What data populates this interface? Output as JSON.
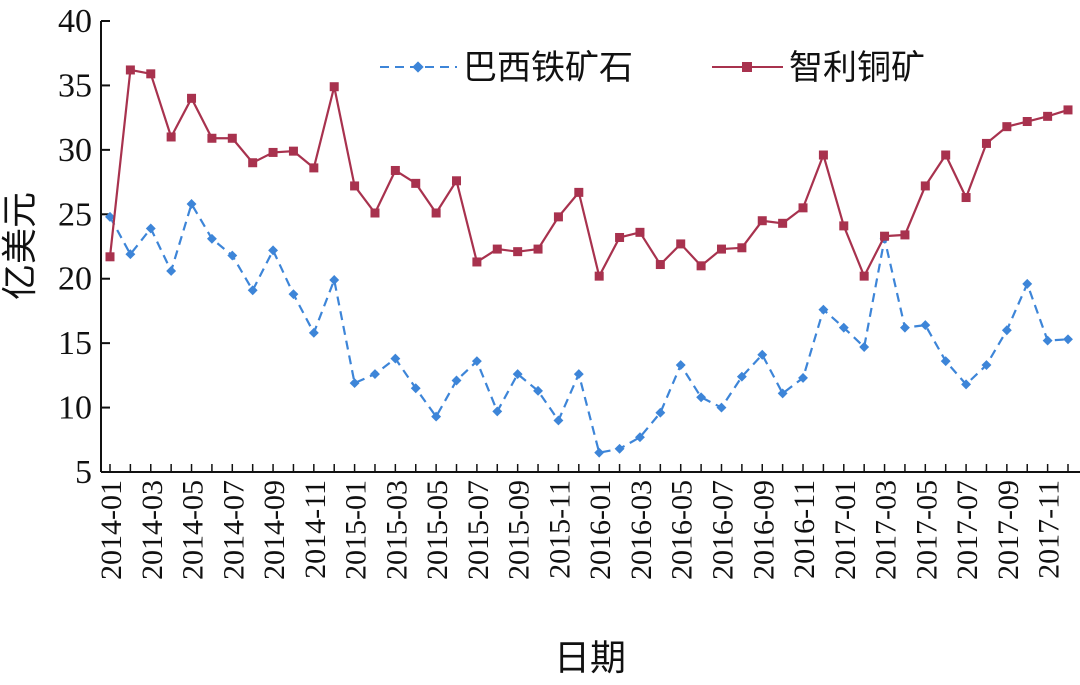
{
  "chart_data": {
    "type": "line",
    "title": "",
    "xlabel": "日期",
    "ylabel": "亿美元",
    "ylim": [
      5,
      40
    ],
    "yticks": [
      5,
      10,
      15,
      20,
      25,
      30,
      35,
      40
    ],
    "grid": false,
    "legend_position": "top",
    "x": [
      "2014-01",
      "2014-02",
      "2014-03",
      "2014-04",
      "2014-05",
      "2014-06",
      "2014-07",
      "2014-08",
      "2014-09",
      "2014-10",
      "2014-11",
      "2014-12",
      "2015-01",
      "2015-02",
      "2015-03",
      "2015-04",
      "2015-05",
      "2015-06",
      "2015-07",
      "2015-08",
      "2015-09",
      "2015-10",
      "2015-11",
      "2015-12",
      "2016-01",
      "2016-02",
      "2016-03",
      "2016-04",
      "2016-05",
      "2016-06",
      "2016-07",
      "2016-08",
      "2016-09",
      "2016-10",
      "2016-11",
      "2016-12",
      "2017-01",
      "2017-02",
      "2017-03",
      "2017-04",
      "2017-05",
      "2017-06",
      "2017-07",
      "2017-08",
      "2017-09",
      "2017-10",
      "2017-11",
      "2017-12"
    ],
    "xtick_labels": [
      "2014-01",
      "2014-03",
      "2014-05",
      "2014-07",
      "2014-09",
      "2014-11",
      "2015-01",
      "2015-03",
      "2015-05",
      "2015-07",
      "2015-09",
      "2015-11",
      "2016-01",
      "2016-03",
      "2016-05",
      "2016-07",
      "2016-09",
      "2016-11",
      "2017-01",
      "2017-03",
      "2017-05",
      "2017-07",
      "2017-09",
      "2017-11"
    ],
    "series": [
      {
        "name": "巴西铁矿石",
        "color": "#3d85d8",
        "marker": "diamond",
        "dash": true,
        "values": [
          24.8,
          21.9,
          23.9,
          20.6,
          25.8,
          23.1,
          21.8,
          19.1,
          22.2,
          18.8,
          15.8,
          19.9,
          11.9,
          12.6,
          13.8,
          11.5,
          9.3,
          12.1,
          13.6,
          9.7,
          12.6,
          11.3,
          9.0,
          12.6,
          6.5,
          6.8,
          7.7,
          9.6,
          13.3,
          10.8,
          10.0,
          12.4,
          14.1,
          11.1,
          12.3,
          17.6,
          16.2,
          14.7,
          23.1,
          16.2,
          16.4,
          13.6,
          11.8,
          13.3,
          16.0,
          19.6,
          15.2,
          15.3
        ]
      },
      {
        "name": "智利铜矿",
        "color": "#a8324e",
        "marker": "square",
        "dash": false,
        "values": [
          21.7,
          36.2,
          35.9,
          31.0,
          34.0,
          30.9,
          30.9,
          29.0,
          29.8,
          29.9,
          28.6,
          34.9,
          27.2,
          25.1,
          28.4,
          27.4,
          25.1,
          27.6,
          21.3,
          22.3,
          22.1,
          22.3,
          24.8,
          26.7,
          20.2,
          23.2,
          23.6,
          21.1,
          22.7,
          21.0,
          22.3,
          22.4,
          24.5,
          24.3,
          25.5,
          29.6,
          24.1,
          20.2,
          23.3,
          23.4,
          27.2,
          29.6,
          26.3,
          30.5,
          31.8,
          32.2,
          32.6,
          33.1
        ]
      }
    ]
  }
}
